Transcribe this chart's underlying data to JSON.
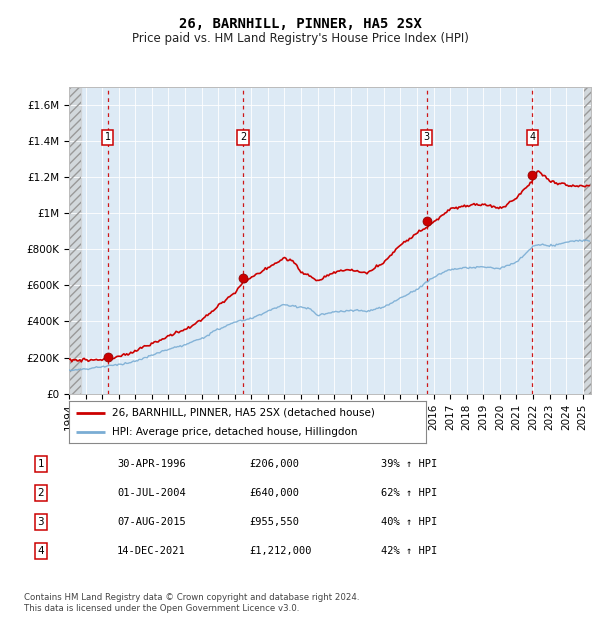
{
  "title": "26, BARNHILL, PINNER, HA5 2SX",
  "subtitle": "Price paid vs. HM Land Registry's House Price Index (HPI)",
  "ylim": [
    0,
    1700000
  ],
  "yticks": [
    0,
    200000,
    400000,
    600000,
    800000,
    1000000,
    1200000,
    1400000,
    1600000
  ],
  "ytick_labels": [
    "£0",
    "£200K",
    "£400K",
    "£600K",
    "£800K",
    "£1M",
    "£1.2M",
    "£1.4M",
    "£1.6M"
  ],
  "xmin": 1994.0,
  "xmax": 2025.5,
  "sale_dates": [
    1996.33,
    2004.5,
    2015.58,
    2021.95
  ],
  "sale_prices": [
    206000,
    640000,
    955550,
    1212000
  ],
  "sale_labels": [
    "1",
    "2",
    "3",
    "4"
  ],
  "hpi_color": "#7aadd4",
  "price_color": "#cc0000",
  "dashed_color": "#cc0000",
  "background_plot": "#ddeaf5",
  "legend_label_price": "26, BARNHILL, PINNER, HA5 2SX (detached house)",
  "legend_label_hpi": "HPI: Average price, detached house, Hillingdon",
  "table_rows": [
    [
      "1",
      "30-APR-1996",
      "£206,000",
      "39% ↑ HPI"
    ],
    [
      "2",
      "01-JUL-2004",
      "£640,000",
      "62% ↑ HPI"
    ],
    [
      "3",
      "07-AUG-2015",
      "£955,550",
      "40% ↑ HPI"
    ],
    [
      "4",
      "14-DEC-2021",
      "£1,212,000",
      "42% ↑ HPI"
    ]
  ],
  "footer": "Contains HM Land Registry data © Crown copyright and database right 2024.\nThis data is licensed under the Open Government Licence v3.0.",
  "title_fontsize": 10,
  "subtitle_fontsize": 8.5,
  "tick_fontsize": 7.5
}
